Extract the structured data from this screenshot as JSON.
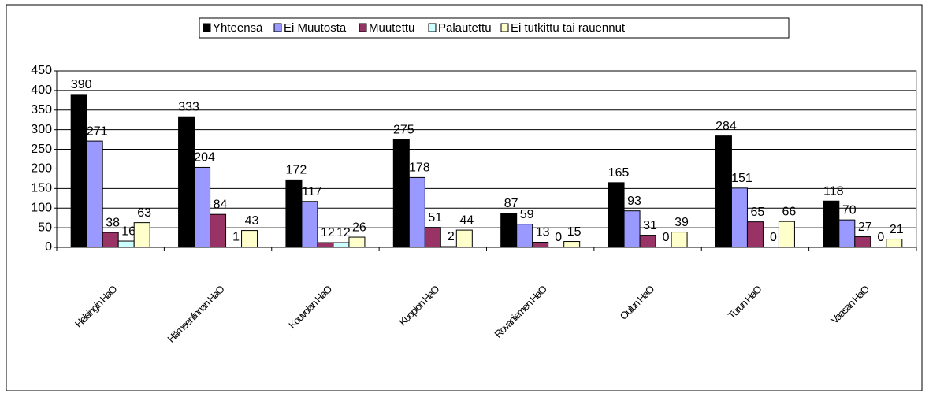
{
  "chart_data": {
    "type": "bar",
    "categories": [
      "Helsingin HaO",
      "Hämeenlinnan HaO",
      "Kouvolan HaO",
      "Kuopion HaO",
      "Rovaniemen HaO",
      "Oulun HaO",
      "Turun HaO",
      "Vaasan HaO"
    ],
    "series": [
      {
        "name": "Yhteensä",
        "color": "#000000",
        "values": [
          390,
          333,
          172,
          275,
          87,
          165,
          284,
          118
        ]
      },
      {
        "name": "Ei Muutosta",
        "color": "#9999ff",
        "values": [
          271,
          204,
          117,
          178,
          59,
          93,
          151,
          70
        ]
      },
      {
        "name": "Muutettu",
        "color": "#993366",
        "values": [
          38,
          84,
          12,
          51,
          13,
          31,
          65,
          27
        ]
      },
      {
        "name": "Palautettu",
        "color": "#ccffff",
        "values": [
          16,
          1,
          12,
          2,
          0,
          0,
          0,
          0
        ]
      },
      {
        "name": "Ei tutkittu tai rauennut",
        "color": "#ffffcc",
        "values": [
          63,
          43,
          26,
          44,
          15,
          39,
          66,
          21
        ]
      }
    ],
    "ylim": [
      0,
      450
    ],
    "yticks": [
      0,
      50,
      100,
      150,
      200,
      250,
      300,
      350,
      400,
      450
    ],
    "grid": true,
    "legend": "top"
  }
}
